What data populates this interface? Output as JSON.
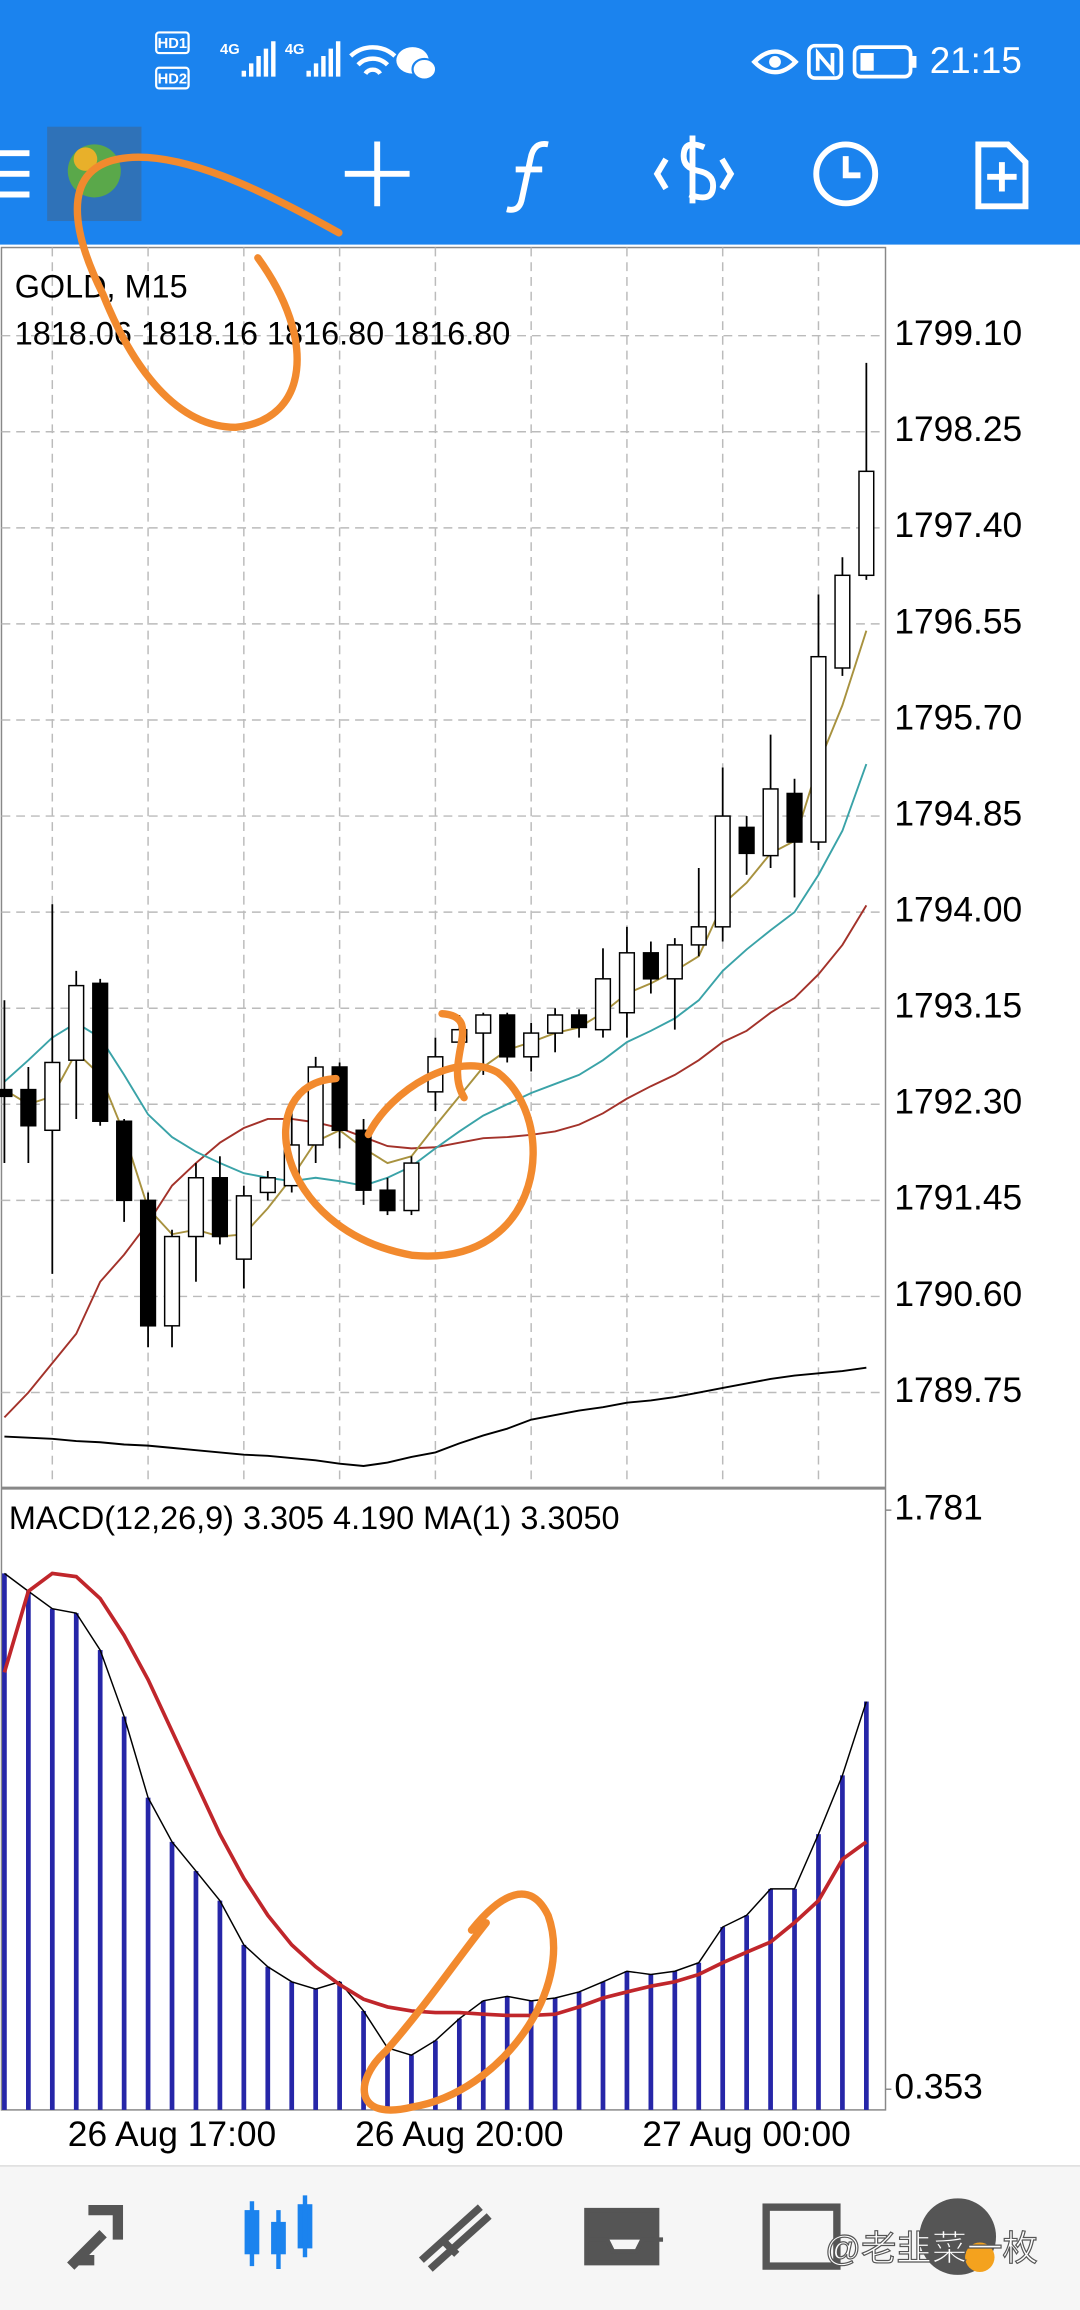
{
  "status_bar": {
    "sims": [
      "HD1",
      "HD2"
    ],
    "network": [
      "4G",
      "4G"
    ],
    "time": "21:15"
  },
  "chart_data": [
    {
      "type": "candlestick",
      "title": "GOLD, M15",
      "subtitle": "1818.06 1818.16 1816.80 1816.80",
      "x": [
        null,
        null,
        null,
        null,
        null,
        null,
        null,
        "26 Aug 17:00",
        null,
        null,
        null,
        null,
        null,
        null,
        null,
        null,
        null,
        null,
        null,
        "26 Aug 20:00",
        null,
        null,
        null,
        null,
        null,
        null,
        null,
        null,
        null,
        null,
        null,
        "27 Aug 00:00",
        null,
        null,
        null,
        null,
        null
      ],
      "open": [
        1792.43,
        1792.43,
        1792.07,
        1792.69,
        1793.37,
        1792.15,
        1791.45,
        1790.34,
        1791.13,
        1791.65,
        1790.93,
        1791.52,
        1791.58,
        1791.94,
        1792.63,
        1792.07,
        1791.54,
        1791.36,
        1792.41,
        1792.85,
        1792.93,
        1793.09,
        1792.72,
        1792.93,
        1793.09,
        1792.96,
        1793.11,
        1793.64,
        1793.41,
        1793.71,
        1793.87,
        1794.75,
        1794.5,
        1795.05,
        1794.62,
        1796.16,
        1796.98
      ],
      "high": [
        1793.22,
        1792.63,
        1794.07,
        1793.48,
        1793.41,
        1792.17,
        1791.52,
        1791.19,
        1791.78,
        1791.84,
        1791.58,
        1791.71,
        1792.3,
        1792.72,
        1792.67,
        1792.17,
        1791.65,
        1791.84,
        1792.89,
        1793.09,
        1793.11,
        1793.11,
        1793.02,
        1793.15,
        1793.14,
        1793.68,
        1793.87,
        1793.74,
        1793.77,
        1794.39,
        1795.28,
        1794.85,
        1795.57,
        1795.18,
        1796.81,
        1797.14,
        1798.86
      ],
      "low": [
        1791.78,
        1791.78,
        1790.8,
        1792.17,
        1792.11,
        1791.26,
        1790.15,
        1790.15,
        1790.73,
        1791.06,
        1790.67,
        1791.45,
        1791.52,
        1791.78,
        1791.91,
        1791.41,
        1791.32,
        1791.32,
        1792.24,
        1792.63,
        1792.56,
        1792.67,
        1792.59,
        1792.76,
        1792.89,
        1792.89,
        1792.89,
        1793.28,
        1792.96,
        1793.61,
        1793.74,
        1794.33,
        1794.39,
        1794.13,
        1794.55,
        1796.09,
        1796.94
      ],
      "close": [
        1792.37,
        1792.11,
        1792.67,
        1793.35,
        1792.15,
        1791.45,
        1790.34,
        1791.13,
        1791.65,
        1791.13,
        1791.49,
        1791.65,
        1791.94,
        1792.63,
        1792.07,
        1791.54,
        1791.36,
        1791.78,
        1792.72,
        1792.96,
        1793.09,
        1792.72,
        1792.93,
        1793.09,
        1792.98,
        1793.41,
        1793.64,
        1793.41,
        1793.71,
        1793.87,
        1794.85,
        1794.52,
        1795.09,
        1794.62,
        1796.26,
        1796.98,
        1797.9
      ],
      "up_color": "#ffffff",
      "down_color": "#000000",
      "series": [
        {
          "color": "#000000",
          "values": [
            1789.36,
            1789.35,
            1789.34,
            1789.32,
            1789.31,
            1789.29,
            1789.28,
            1789.26,
            1789.24,
            1789.22,
            1789.2,
            1789.19,
            1789.17,
            1789.15,
            1789.12,
            1789.1,
            1789.13,
            1789.18,
            1789.22,
            1789.3,
            1789.37,
            1789.43,
            1789.51,
            1789.55,
            1789.59,
            1789.62,
            1789.66,
            1789.68,
            1789.71,
            1789.75,
            1789.79,
            1789.83,
            1789.87,
            1789.9,
            1789.92,
            1789.94,
            1789.97
          ]
        },
        {
          "color": "#a3322a",
          "values": [
            1789.53,
            1789.75,
            1790.01,
            1790.27,
            1790.73,
            1790.97,
            1791.25,
            1791.58,
            1791.78,
            1791.96,
            1792.09,
            1792.17,
            1792.17,
            1792.14,
            1792.09,
            1792.01,
            1791.93,
            1791.91,
            1791.92,
            1791.96,
            1792.0,
            1792.01,
            1792.03,
            1792.06,
            1792.12,
            1792.22,
            1792.35,
            1792.46,
            1792.56,
            1792.69,
            1792.85,
            1792.95,
            1793.11,
            1793.24,
            1793.45,
            1793.71,
            1794.06
          ]
        },
        {
          "color": "#3aa3a8",
          "values": [
            1792.5,
            1792.69,
            1792.89,
            1793.02,
            1792.89,
            1792.56,
            1792.21,
            1792.01,
            1791.88,
            1791.78,
            1791.69,
            1791.65,
            1791.62,
            1791.65,
            1791.62,
            1791.58,
            1791.65,
            1791.75,
            1791.91,
            1792.06,
            1792.2,
            1792.3,
            1792.4,
            1792.48,
            1792.56,
            1792.69,
            1792.85,
            1792.95,
            1793.06,
            1793.22,
            1793.48,
            1793.67,
            1793.84,
            1794.0,
            1794.33,
            1794.72,
            1795.31
          ]
        },
        {
          "color": "#a8923f",
          "values": [
            1792.43,
            1792.3,
            1792.37,
            1792.76,
            1792.56,
            1792.04,
            1791.38,
            1791.15,
            1791.19,
            1791.13,
            1791.15,
            1791.38,
            1791.65,
            1791.97,
            1792.07,
            1791.91,
            1791.78,
            1791.84,
            1792.11,
            1792.37,
            1792.63,
            1792.78,
            1792.85,
            1792.93,
            1792.98,
            1793.11,
            1793.28,
            1793.37,
            1793.48,
            1793.61,
            1794.07,
            1794.26,
            1794.52,
            1794.63,
            1795.31,
            1795.83,
            1796.49
          ]
        }
      ],
      "ylim": [
        1788.93,
        1799.88
      ],
      "yticks": [
        {
          "value": 1799.1,
          "label": "1799.10"
        },
        1798.25,
        {
          "value": 1797.4,
          "label": "1797.40"
        },
        1796.55,
        {
          "value": 1795.7,
          "label": "1795.70"
        },
        1794.85,
        {
          "value": 1794,
          "label": "1794.00"
        },
        1793.15,
        {
          "value": 1792.3,
          "label": "1792.30"
        },
        1791.45,
        {
          "value": 1790.6,
          "label": "1790.60"
        },
        1789.75
      ],
      "grid": true
    },
    {
      "type": "bar",
      "title": "MACD(12,26,9) 3.305 4.190 MA(1) 3.3050",
      "values": [
        1.625,
        1.581,
        1.538,
        1.527,
        1.436,
        1.272,
        1.072,
        0.963,
        0.891,
        0.818,
        0.709,
        0.655,
        0.618,
        0.6,
        0.618,
        0.546,
        0.455,
        0.437,
        0.473,
        0.527,
        0.571,
        0.582,
        0.571,
        0.578,
        0.593,
        0.618,
        0.644,
        0.636,
        0.644,
        0.665,
        0.753,
        0.782,
        0.847,
        0.847,
        0.982,
        1.127,
        1.309
      ],
      "color": "#2626a8",
      "line_color": "#000000",
      "series": [
        {
          "color": "#c0262b",
          "values": [
            1.381,
            1.581,
            1.625,
            1.617,
            1.563,
            1.472,
            1.363,
            1.236,
            1.109,
            0.982,
            0.873,
            0.782,
            0.709,
            0.655,
            0.611,
            0.575,
            0.556,
            0.546,
            0.542,
            0.542,
            0.538,
            0.535,
            0.535,
            0.538,
            0.556,
            0.578,
            0.593,
            0.607,
            0.618,
            0.636,
            0.665,
            0.691,
            0.716,
            0.764,
            0.818,
            0.92,
            0.963
          ]
        }
      ],
      "ylim": [
        0.302,
        1.828
      ],
      "yticks": [
        1.781,
        0.353
      ]
    }
  ],
  "watermark": "@老韭菜一枚"
}
